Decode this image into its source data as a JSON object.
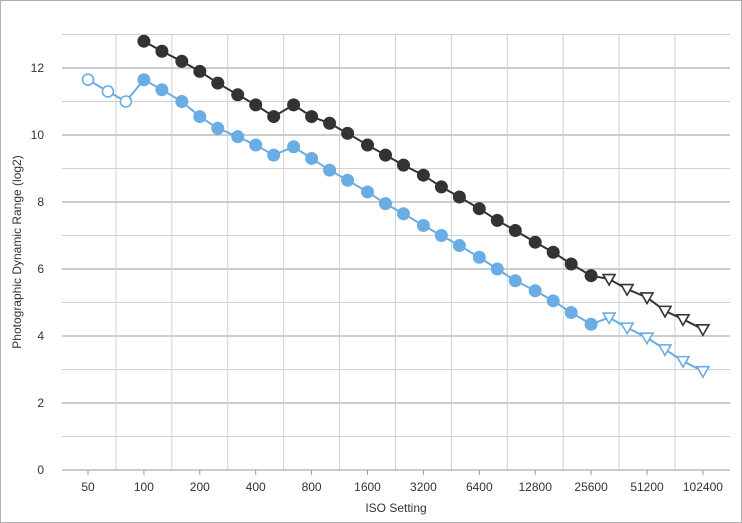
{
  "chart_data": {
    "type": "line",
    "title": "",
    "xlabel": "ISO Setting",
    "ylabel": "Photographic Dynamic Range (log2)",
    "x_scale": "log2",
    "xlim": [
      50,
      102400
    ],
    "ylim": [
      0,
      13
    ],
    "y_ticks": [
      0,
      2,
      4,
      6,
      8,
      10,
      12
    ],
    "x_ticks": [
      50,
      100,
      200,
      400,
      800,
      1600,
      3200,
      6400,
      12800,
      25600,
      51200,
      102400
    ],
    "x_tick_labels": [
      "50",
      "100",
      "200",
      "400",
      "800",
      "1600",
      "3200",
      "6400",
      "12800",
      "25600",
      "51200",
      "102400"
    ],
    "grid": true,
    "legend": "none",
    "series": [
      {
        "color": "#333333",
        "marker_key": "filled circle = native ISO, open triangle = extended ISO",
        "points": [
          {
            "x": 100,
            "y": 12.8,
            "m": "dot"
          },
          {
            "x": 125,
            "y": 12.5,
            "m": "dot"
          },
          {
            "x": 160,
            "y": 12.2,
            "m": "dot"
          },
          {
            "x": 200,
            "y": 11.9,
            "m": "dot"
          },
          {
            "x": 250,
            "y": 11.55,
            "m": "dot"
          },
          {
            "x": 320,
            "y": 11.2,
            "m": "dot"
          },
          {
            "x": 400,
            "y": 10.9,
            "m": "dot"
          },
          {
            "x": 500,
            "y": 10.55,
            "m": "dot"
          },
          {
            "x": 640,
            "y": 10.9,
            "m": "dot"
          },
          {
            "x": 800,
            "y": 10.55,
            "m": "dot"
          },
          {
            "x": 1000,
            "y": 10.35,
            "m": "dot"
          },
          {
            "x": 1250,
            "y": 10.05,
            "m": "dot"
          },
          {
            "x": 1600,
            "y": 9.7,
            "m": "dot"
          },
          {
            "x": 2000,
            "y": 9.4,
            "m": "dot"
          },
          {
            "x": 2500,
            "y": 9.1,
            "m": "dot"
          },
          {
            "x": 3200,
            "y": 8.8,
            "m": "dot"
          },
          {
            "x": 4000,
            "y": 8.45,
            "m": "dot"
          },
          {
            "x": 5000,
            "y": 8.15,
            "m": "dot"
          },
          {
            "x": 6400,
            "y": 7.8,
            "m": "dot"
          },
          {
            "x": 8000,
            "y": 7.45,
            "m": "dot"
          },
          {
            "x": 10000,
            "y": 7.15,
            "m": "dot"
          },
          {
            "x": 12800,
            "y": 6.8,
            "m": "dot"
          },
          {
            "x": 16000,
            "y": 6.5,
            "m": "dot"
          },
          {
            "x": 20000,
            "y": 6.15,
            "m": "dot"
          },
          {
            "x": 25600,
            "y": 5.8,
            "m": "dot"
          },
          {
            "x": 32000,
            "y": 5.7,
            "m": "tri"
          },
          {
            "x": 40000,
            "y": 5.4,
            "m": "tri"
          },
          {
            "x": 51200,
            "y": 5.15,
            "m": "tri"
          },
          {
            "x": 64000,
            "y": 4.75,
            "m": "tri"
          },
          {
            "x": 80000,
            "y": 4.5,
            "m": "tri"
          },
          {
            "x": 102400,
            "y": 4.2,
            "m": "tri"
          }
        ]
      },
      {
        "color": "#6aade4",
        "points": [
          {
            "x": 50,
            "y": 11.65,
            "m": "ring"
          },
          {
            "x": 64,
            "y": 11.3,
            "m": "ring"
          },
          {
            "x": 80,
            "y": 11.0,
            "m": "ring"
          },
          {
            "x": 100,
            "y": 11.65,
            "m": "dot"
          },
          {
            "x": 125,
            "y": 11.35,
            "m": "dot"
          },
          {
            "x": 160,
            "y": 11.0,
            "m": "dot"
          },
          {
            "x": 200,
            "y": 10.55,
            "m": "dot"
          },
          {
            "x": 250,
            "y": 10.2,
            "m": "dot"
          },
          {
            "x": 320,
            "y": 9.95,
            "m": "dot"
          },
          {
            "x": 400,
            "y": 9.7,
            "m": "dot"
          },
          {
            "x": 500,
            "y": 9.4,
            "m": "dot"
          },
          {
            "x": 640,
            "y": 9.65,
            "m": "dot"
          },
          {
            "x": 800,
            "y": 9.3,
            "m": "dot"
          },
          {
            "x": 1000,
            "y": 8.95,
            "m": "dot"
          },
          {
            "x": 1250,
            "y": 8.65,
            "m": "dot"
          },
          {
            "x": 1600,
            "y": 8.3,
            "m": "dot"
          },
          {
            "x": 2000,
            "y": 7.95,
            "m": "dot"
          },
          {
            "x": 2500,
            "y": 7.65,
            "m": "dot"
          },
          {
            "x": 3200,
            "y": 7.3,
            "m": "dot"
          },
          {
            "x": 4000,
            "y": 7.0,
            "m": "dot"
          },
          {
            "x": 5000,
            "y": 6.7,
            "m": "dot"
          },
          {
            "x": 6400,
            "y": 6.35,
            "m": "dot"
          },
          {
            "x": 8000,
            "y": 6.0,
            "m": "dot"
          },
          {
            "x": 10000,
            "y": 5.65,
            "m": "dot"
          },
          {
            "x": 12800,
            "y": 5.35,
            "m": "dot"
          },
          {
            "x": 16000,
            "y": 5.05,
            "m": "dot"
          },
          {
            "x": 20000,
            "y": 4.7,
            "m": "dot"
          },
          {
            "x": 25600,
            "y": 4.35,
            "m": "dot"
          },
          {
            "x": 32000,
            "y": 4.55,
            "m": "tri"
          },
          {
            "x": 40000,
            "y": 4.25,
            "m": "tri"
          },
          {
            "x": 51200,
            "y": 3.95,
            "m": "tri"
          },
          {
            "x": 64000,
            "y": 3.6,
            "m": "tri"
          },
          {
            "x": 80000,
            "y": 3.25,
            "m": "tri"
          },
          {
            "x": 102400,
            "y": 2.95,
            "m": "tri"
          }
        ]
      }
    ]
  }
}
